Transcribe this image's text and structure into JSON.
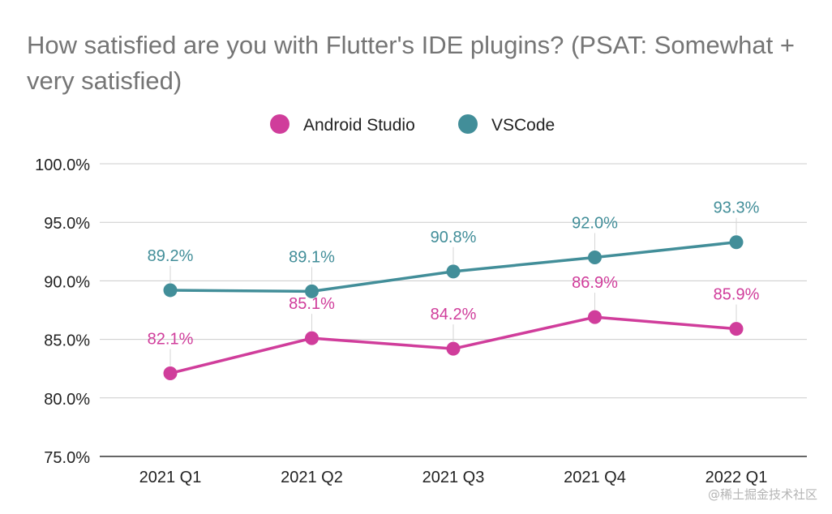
{
  "chart_data": {
    "type": "line",
    "title": "How satisfied are you with Flutter's IDE plugins? (PSAT: Somewhat + very satisfied)",
    "categories": [
      "2021 Q1",
      "2021 Q2",
      "2021 Q3",
      "2021 Q4",
      "2022 Q1"
    ],
    "series": [
      {
        "name": "Android Studio",
        "values": [
          82.1,
          85.1,
          84.2,
          86.9,
          85.9
        ],
        "labels": [
          "82.1%",
          "85.1%",
          "84.2%",
          "86.9%",
          "85.9%"
        ],
        "color": "#d03d9b"
      },
      {
        "name": "VSCode",
        "values": [
          89.2,
          89.1,
          90.8,
          92.0,
          93.3
        ],
        "labels": [
          "89.2%",
          "89.1%",
          "90.8%",
          "92.0%",
          "93.3%"
        ],
        "color": "#428e99"
      }
    ],
    "yticks": [
      75,
      80,
      85,
      90,
      95,
      100
    ],
    "ytick_labels": [
      "75.0%",
      "80.0%",
      "85.0%",
      "90.0%",
      "95.0%",
      "100.0%"
    ],
    "ylim": [
      75,
      100
    ],
    "xlabel": "",
    "ylabel": "",
    "grid": true,
    "legend_position": "top-center"
  },
  "watermark": "@稀土掘金技术社区"
}
